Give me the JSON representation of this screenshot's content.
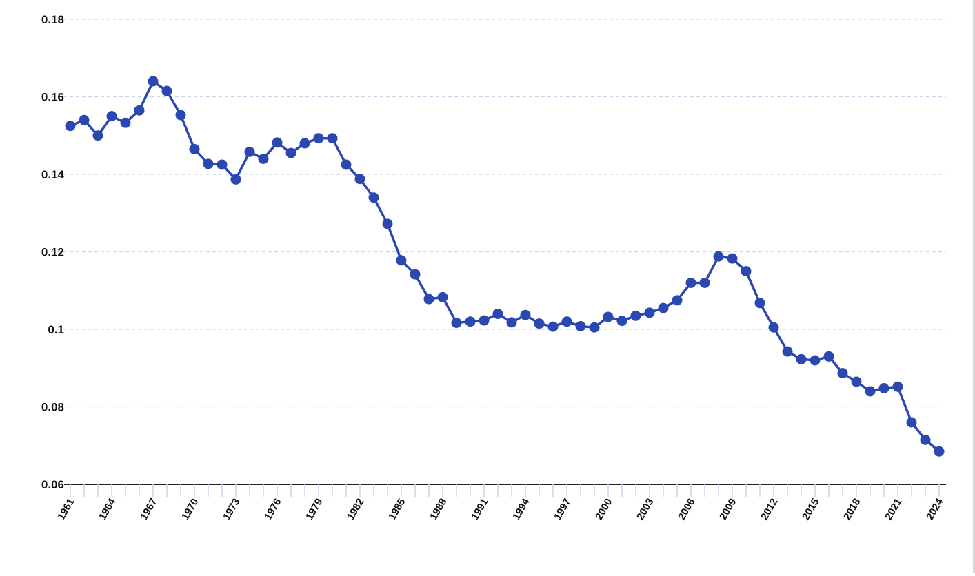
{
  "chart_data": {
    "type": "line",
    "title": "",
    "xlabel": "",
    "ylabel": "",
    "x": [
      1961,
      1962,
      1963,
      1964,
      1965,
      1966,
      1967,
      1968,
      1969,
      1970,
      1971,
      1972,
      1973,
      1974,
      1975,
      1976,
      1977,
      1978,
      1979,
      1980,
      1981,
      1982,
      1983,
      1984,
      1985,
      1986,
      1987,
      1988,
      1989,
      1990,
      1991,
      1992,
      1993,
      1994,
      1995,
      1996,
      1997,
      1998,
      1999,
      2000,
      2001,
      2002,
      2003,
      2004,
      2005,
      2006,
      2007,
      2008,
      2009,
      2010,
      2011,
      2012,
      2013,
      2014,
      2015,
      2016,
      2017,
      2018,
      2019,
      2020,
      2021,
      2022,
      2023,
      2024
    ],
    "series": [
      {
        "values": [
          0.1525,
          0.154,
          0.15,
          0.155,
          0.1533,
          0.1565,
          0.164,
          0.1615,
          0.1553,
          0.1465,
          0.1427,
          0.1425,
          0.1387,
          0.1458,
          0.144,
          0.1482,
          0.1455,
          0.148,
          0.1493,
          0.1493,
          0.1425,
          0.1388,
          0.134,
          0.1272,
          0.1178,
          0.1142,
          0.1078,
          0.1083,
          0.1017,
          0.102,
          0.1023,
          0.104,
          0.1018,
          0.1037,
          0.1015,
          0.1007,
          0.102,
          0.1008,
          0.1005,
          0.1032,
          0.1022,
          0.1035,
          0.1043,
          0.1055,
          0.1075,
          0.112,
          0.112,
          0.1188,
          0.1183,
          0.115,
          0.1068,
          0.1005,
          0.0943,
          0.0923,
          0.092,
          0.093,
          0.0887,
          0.0865,
          0.084,
          0.0848,
          0.0852,
          0.076,
          0.0715,
          0.0685
        ]
      }
    ],
    "ylim": [
      0.06,
      0.18
    ],
    "yticks": [
      0.06,
      0.08,
      0.1,
      0.12,
      0.14,
      0.16,
      0.18
    ],
    "ytick_labels": [
      "0.06",
      "0.08",
      "0.1",
      "0.12",
      "0.14",
      "0.16",
      "0.18"
    ],
    "xtick_labels": [
      "1961",
      "1964",
      "1967",
      "1970",
      "1973",
      "1976",
      "1979",
      "1982",
      "1985",
      "1988",
      "1991",
      "1994",
      "1997",
      "2000",
      "2003",
      "2006",
      "2009",
      "2012",
      "2015",
      "2018",
      "2021",
      "2024"
    ],
    "grid": true,
    "legend": "none",
    "colors": {
      "line": "#2a48b0",
      "grid": "#c9d5ea",
      "axis": "#222222"
    }
  }
}
